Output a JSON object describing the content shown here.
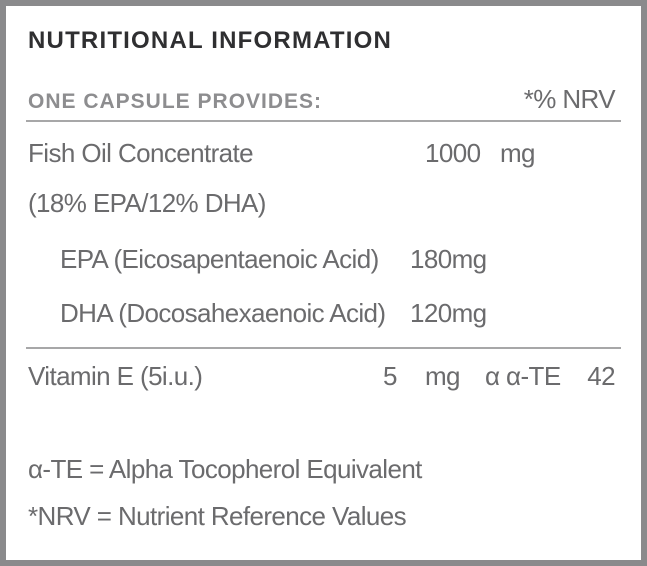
{
  "title": "NUTRITIONAL INFORMATION",
  "table": {
    "header": [
      "ONE CAPSULE PROVIDES:",
      "*% NRV"
    ],
    "rows": [
      [
        "Fish Oil Concentrate",
        "1000",
        "mg"
      ],
      [
        "(18% EPA/12% DHA)"
      ],
      [
        "EPA (Eicosapentaenoic Acid)",
        "180mg"
      ],
      [
        "DHA (Docosahexaenoic Acid)",
        "120mg"
      ],
      [
        "Vitamin E (5i.u.)",
        "5",
        "mg",
        "α α-TE",
        "42"
      ]
    ]
  },
  "footnotes": [
    "α-TE = Alpha Tocopherol Equivalent",
    "*NRV = Nutrient Reference Values"
  ]
}
